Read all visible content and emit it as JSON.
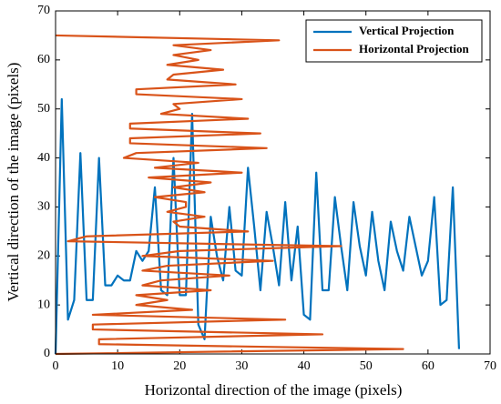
{
  "chart_data": {
    "type": "line",
    "xlabel": "Horizontal direction of the image (pixels)",
    "ylabel": "Vertical direction of the image (pixels)",
    "xlim": [
      0,
      70
    ],
    "xticks": [
      0,
      10,
      20,
      30,
      40,
      50,
      60,
      70
    ],
    "ylim": [
      0,
      70
    ],
    "yticks": [
      0,
      10,
      20,
      30,
      40,
      50,
      60,
      70
    ],
    "legend": "upper right",
    "series": [
      {
        "name": "Vertical Projection",
        "color": "#0072bd",
        "x": [
          0,
          1,
          2,
          3,
          4,
          5,
          6,
          7,
          8,
          9,
          10,
          11,
          12,
          13,
          14,
          15,
          16,
          17,
          18,
          19,
          20,
          21,
          22,
          23,
          24,
          25,
          26,
          27,
          28,
          29,
          30,
          31,
          32,
          33,
          34,
          35,
          36,
          37,
          38,
          39,
          40,
          41,
          42,
          43,
          44,
          45,
          46,
          47,
          48,
          49,
          50,
          51,
          52,
          53,
          54,
          55,
          56,
          57,
          58,
          59,
          60,
          61,
          62,
          63,
          64,
          65
        ],
        "values": [
          0,
          52,
          7,
          11,
          41,
          11,
          11,
          40,
          14,
          14,
          16,
          15,
          15,
          21,
          19,
          21,
          34,
          13,
          12,
          40,
          12,
          12,
          49,
          6,
          3,
          28,
          20,
          15,
          30,
          17,
          16,
          38,
          26,
          13,
          29,
          22,
          14,
          31,
          15,
          26,
          8,
          7,
          37,
          13,
          13,
          32,
          22,
          13,
          31,
          22,
          16,
          29,
          19,
          13,
          27,
          21,
          17,
          28,
          22,
          16,
          19,
          32,
          10,
          11,
          34,
          1
        ]
      },
      {
        "name": "Horizontal Projection",
        "color": "#d95319",
        "x": [
          0,
          56,
          7,
          7,
          43,
          6,
          6,
          37,
          6,
          22,
          13,
          18,
          13,
          25,
          14,
          17,
          28,
          14,
          18,
          35,
          14,
          20,
          46,
          2,
          5,
          31,
          20,
          19,
          24,
          18,
          21,
          21,
          16,
          24,
          19,
          25,
          15,
          30,
          16,
          23,
          11,
          13,
          34,
          12,
          12,
          33,
          12,
          12,
          31,
          17,
          20,
          19,
          30,
          13,
          13,
          29,
          18,
          19,
          27,
          18,
          23,
          19,
          25,
          19,
          36,
          0
        ],
        "values": [
          0,
          1,
          2,
          3,
          4,
          5,
          6,
          7,
          8,
          9,
          10,
          11,
          12,
          13,
          14,
          15,
          16,
          17,
          18,
          19,
          20,
          21,
          22,
          23,
          24,
          25,
          26,
          27,
          28,
          29,
          30,
          31,
          32,
          33,
          34,
          35,
          36,
          37,
          38,
          39,
          40,
          41,
          42,
          43,
          44,
          45,
          46,
          47,
          48,
          49,
          50,
          51,
          52,
          53,
          54,
          55,
          56,
          57,
          58,
          59,
          60,
          61,
          62,
          63,
          64,
          65
        ]
      }
    ]
  }
}
